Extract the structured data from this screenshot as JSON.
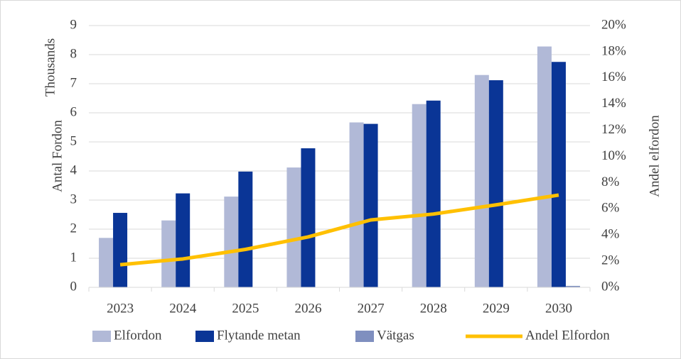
{
  "chart_data": {
    "type": "bar_line",
    "categories": [
      "2023",
      "2024",
      "2025",
      "2026",
      "2027",
      "2028",
      "2029",
      "2030"
    ],
    "ylabel": "Antal Fordon",
    "yunit": "Thousands",
    "y2label": "Andel elfordon",
    "ylim": [
      0,
      9
    ],
    "yticks": [
      0,
      1,
      2,
      3,
      4,
      5,
      6,
      7,
      8,
      9
    ],
    "y2lim": [
      0,
      20
    ],
    "y2ticks": [
      {
        "value": 0,
        "label": "0%"
      },
      {
        "value": 2,
        "label": "2%"
      },
      {
        "value": 4,
        "label": "4%"
      },
      {
        "value": 6,
        "label": "6%"
      },
      {
        "value": 8,
        "label": "8%"
      },
      {
        "value": 10,
        "label": "10%"
      },
      {
        "value": 12,
        "label": "12%"
      },
      {
        "value": 14,
        "label": "14%"
      },
      {
        "value": 16,
        "label": "16%"
      },
      {
        "value": 18,
        "label": "18%"
      },
      {
        "value": 20,
        "label": "20%"
      }
    ],
    "grid": true,
    "legend": "bottom",
    "series": [
      {
        "name": "Elfordon",
        "type": "bar",
        "color": "#b1b9d7",
        "values": [
          1.7,
          2.3,
          3.12,
          4.12,
          5.67,
          6.3,
          7.3,
          8.28
        ]
      },
      {
        "name": "Flytande metan",
        "type": "bar",
        "color": "#0a3596",
        "values": [
          2.56,
          3.23,
          3.98,
          4.78,
          5.62,
          6.42,
          7.12,
          7.75
        ]
      },
      {
        "name": "Vätgas",
        "type": "bar",
        "color": "#7f8fbf",
        "values": [
          0,
          0,
          0,
          0,
          0,
          0,
          0,
          0.05
        ]
      },
      {
        "name": "Andel Elfordon",
        "type": "line",
        "axis": "y2",
        "color": "#ffc000",
        "values": [
          1.73,
          2.17,
          2.9,
          3.85,
          5.15,
          5.6,
          6.3,
          7.05
        ]
      }
    ]
  }
}
